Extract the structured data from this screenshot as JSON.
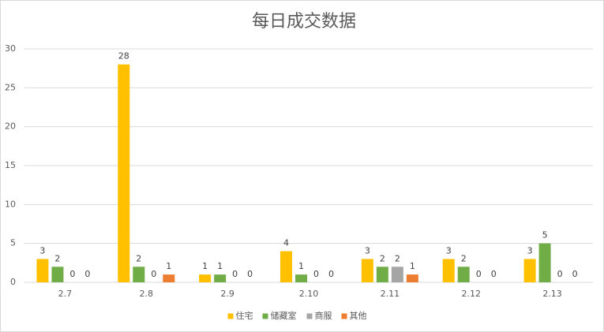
{
  "chart_data": {
    "type": "bar",
    "title": "每日成交数据",
    "categories": [
      "2.7",
      "2.8",
      "2.9",
      "2.10",
      "2.11",
      "2.12",
      "2.13"
    ],
    "series": [
      {
        "name": "住宅",
        "color": "#ffc000",
        "values": [
          3,
          28,
          1,
          4,
          3,
          3,
          3
        ]
      },
      {
        "name": "储藏室",
        "color": "#70ad47",
        "values": [
          2,
          2,
          1,
          1,
          2,
          2,
          5
        ]
      },
      {
        "name": "商服",
        "color": "#a5a5a5",
        "values": [
          0,
          0,
          0,
          0,
          2,
          0,
          0
        ]
      },
      {
        "name": "其他",
        "color": "#ed7d31",
        "values": [
          0,
          1,
          0,
          0,
          1,
          0,
          0
        ]
      }
    ],
    "ylim": [
      0,
      30
    ],
    "yticks": [
      0,
      5,
      10,
      15,
      20,
      25,
      30
    ],
    "grid": true,
    "legend": "bottom"
  }
}
